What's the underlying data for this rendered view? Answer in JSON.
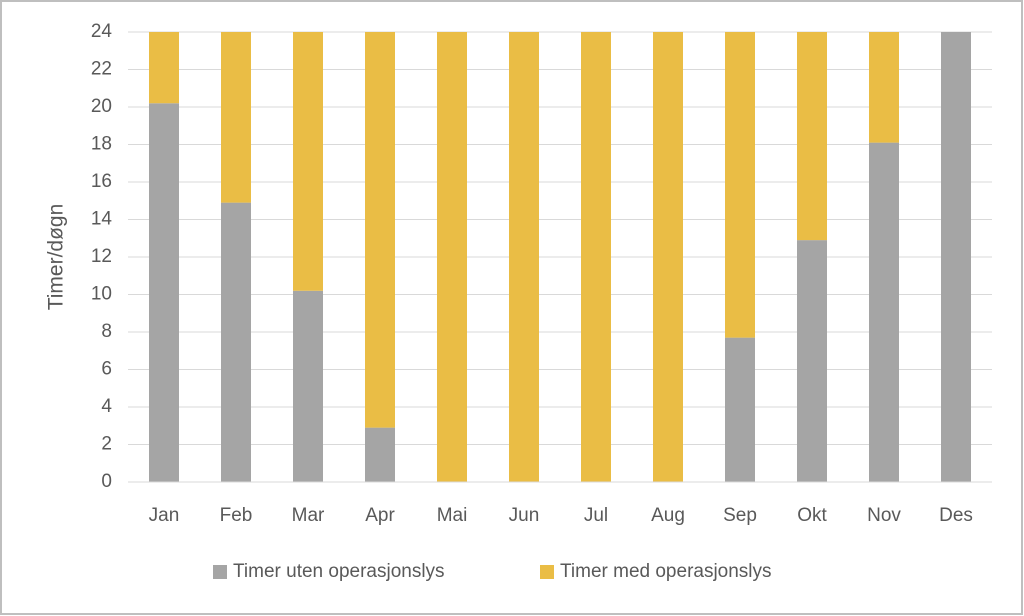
{
  "chart_data": {
    "type": "bar",
    "stacked": true,
    "y_label": "Timer/døgn",
    "categories": [
      "Jan",
      "Feb",
      "Mar",
      "Apr",
      "Mai",
      "Jun",
      "Jul",
      "Aug",
      "Sep",
      "Okt",
      "Nov",
      "Des"
    ],
    "series": [
      {
        "name": "Timer uten operasjonslys",
        "color": "#a5a5a5",
        "values": [
          20.2,
          14.9,
          10.2,
          2.9,
          0,
          0,
          0,
          0,
          7.7,
          12.9,
          18.1,
          24
        ]
      },
      {
        "name": "Timer med operasjonslys",
        "color": "#eabd45",
        "values": [
          3.8,
          9.1,
          13.8,
          21.1,
          24,
          24,
          24,
          24,
          16.3,
          11.1,
          5.9,
          0
        ]
      }
    ],
    "ylim": [
      0,
      24
    ],
    "yticks": [
      0,
      2,
      4,
      6,
      8,
      10,
      12,
      14,
      16,
      18,
      20,
      22,
      24
    ],
    "grid": true,
    "legend": "bottom"
  }
}
